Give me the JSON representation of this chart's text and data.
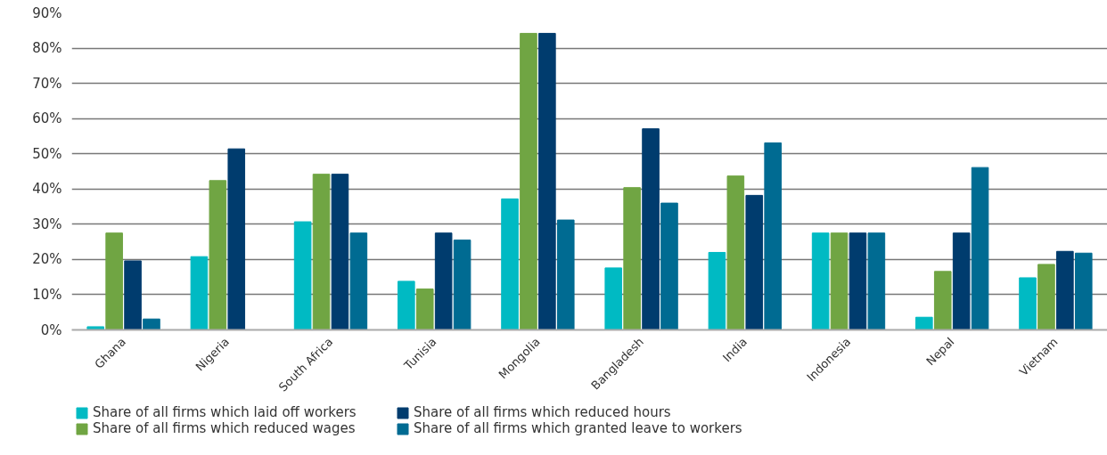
{
  "chart_data": {
    "type": "bar",
    "categories": [
      "Ghana",
      "Nigeria",
      "South Africa",
      "Tunisia",
      "Mongolia",
      "Bangladesh",
      "India",
      "Indonesia",
      "Nepal",
      "Vietnam"
    ],
    "series": [
      {
        "name": "Share of all firms which laid off workers",
        "color": "#00bac3",
        "values": [
          0.9,
          20.8,
          30.7,
          13.8,
          37.2,
          17.6,
          22.0,
          27.5,
          3.6,
          14.8
        ]
      },
      {
        "name": "Share of all firms which reduced wages",
        "color": "#70a543",
        "values": [
          27.5,
          42.4,
          44.2,
          11.6,
          84.2,
          40.4,
          43.7,
          27.5,
          16.6,
          18.6
        ]
      },
      {
        "name": "Share of all firms which reduced hours",
        "color": "#003c6e",
        "values": [
          19.6,
          51.4,
          44.2,
          27.5,
          84.2,
          57.1,
          38.2,
          27.5,
          27.5,
          22.3
        ]
      },
      {
        "name": "Share of all firms which granted leave to workers",
        "color": "#006b92",
        "values": [
          3.1,
          null,
          27.5,
          25.5,
          31.2,
          36.0,
          53.1,
          27.5,
          46.1,
          21.8
        ]
      }
    ],
    "ylim": [
      0,
      90
    ],
    "yticks": [
      {
        "value": 0,
        "label": "0%"
      },
      {
        "value": 10,
        "label": "10%"
      },
      {
        "value": 20,
        "label": "20%"
      },
      {
        "value": 30,
        "label": "30%"
      },
      {
        "value": 40,
        "label": "40%"
      },
      {
        "value": 50,
        "label": "50%"
      },
      {
        "value": 60,
        "label": "60%"
      },
      {
        "value": 70,
        "label": "70%"
      },
      {
        "value": 80,
        "label": "80%"
      },
      {
        "value": 90,
        "label": "90%"
      }
    ],
    "grid": "y",
    "legend": "bottom"
  }
}
